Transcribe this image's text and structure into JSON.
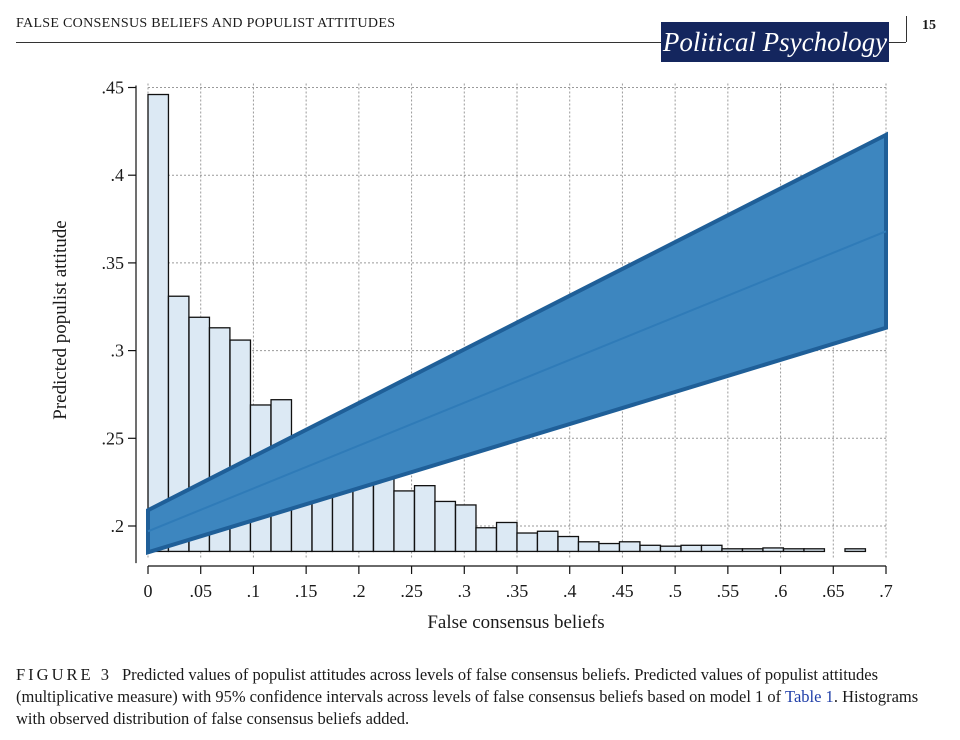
{
  "header": {
    "running_title": "FALSE CONSENSUS BELIEFS AND POPULIST ATTITUDES",
    "journal_name": "Political Psychology",
    "page_number": "15"
  },
  "chart_data": {
    "type": "bar+line",
    "title": "",
    "xlabel": "False consensus beliefs",
    "ylabel": "Predicted populist attitude",
    "xlim": [
      0,
      0.7
    ],
    "ylim": [
      0.18,
      0.45
    ],
    "x_ticks": [
      0,
      0.05,
      0.1,
      0.15,
      0.2,
      0.25,
      0.3,
      0.35,
      0.4,
      0.45,
      0.5,
      0.55,
      0.6,
      0.65,
      0.7
    ],
    "x_tick_labels": [
      "0",
      ".05",
      ".1",
      ".15",
      ".2",
      ".25",
      ".3",
      ".35",
      ".4",
      ".45",
      ".5",
      ".55",
      ".6",
      ".65",
      ".7"
    ],
    "y_ticks": [
      0.2,
      0.25,
      0.3,
      0.35,
      0.4,
      0.45
    ],
    "y_tick_labels": [
      ".2",
      ".25",
      ".3",
      ".35",
      ".4",
      ".45"
    ],
    "grid": true,
    "histogram": {
      "bin_width": 0.0194,
      "bins": [
        {
          "x": 0.0,
          "top": 0.446
        },
        {
          "x": 0.0194,
          "top": 0.331
        },
        {
          "x": 0.0389,
          "top": 0.319
        },
        {
          "x": 0.0583,
          "top": 0.313
        },
        {
          "x": 0.0778,
          "top": 0.306
        },
        {
          "x": 0.0972,
          "top": 0.269
        },
        {
          "x": 0.1167,
          "top": 0.272
        },
        {
          "x": 0.1361,
          "top": 0.251
        },
        {
          "x": 0.1556,
          "top": 0.248
        },
        {
          "x": 0.175,
          "top": 0.243
        },
        {
          "x": 0.1944,
          "top": 0.227
        },
        {
          "x": 0.2139,
          "top": 0.236
        },
        {
          "x": 0.2333,
          "top": 0.22
        },
        {
          "x": 0.2528,
          "top": 0.223
        },
        {
          "x": 0.2722,
          "top": 0.214
        },
        {
          "x": 0.2917,
          "top": 0.212
        },
        {
          "x": 0.3111,
          "top": 0.199
        },
        {
          "x": 0.3306,
          "top": 0.202
        },
        {
          "x": 0.35,
          "top": 0.196
        },
        {
          "x": 0.3694,
          "top": 0.197
        },
        {
          "x": 0.3889,
          "top": 0.194
        },
        {
          "x": 0.4083,
          "top": 0.191
        },
        {
          "x": 0.4278,
          "top": 0.19
        },
        {
          "x": 0.4472,
          "top": 0.191
        },
        {
          "x": 0.4667,
          "top": 0.189
        },
        {
          "x": 0.4861,
          "top": 0.1885
        },
        {
          "x": 0.5056,
          "top": 0.189
        },
        {
          "x": 0.525,
          "top": 0.189
        },
        {
          "x": 0.5444,
          "top": 0.187
        },
        {
          "x": 0.5639,
          "top": 0.187
        },
        {
          "x": 0.5833,
          "top": 0.1875
        },
        {
          "x": 0.6028,
          "top": 0.187
        },
        {
          "x": 0.6222,
          "top": 0.187
        },
        {
          "x": 0.6611,
          "top": 0.187
        }
      ]
    },
    "series": [
      {
        "name": "Predicted value",
        "x": [
          0,
          0.7
        ],
        "y": [
          0.197,
          0.368
        ]
      },
      {
        "name": "95% CI lower",
        "x": [
          0,
          0.7
        ],
        "y": [
          0.185,
          0.313
        ]
      },
      {
        "name": "95% CI upper",
        "x": [
          0,
          0.7
        ],
        "y": [
          0.209,
          0.423
        ]
      }
    ],
    "colors": {
      "band_fill": "#3d86bf",
      "band_edge": "#1f5f98",
      "line": "#2f7bb8",
      "bar_fill": "#dce9f4",
      "bar_edge": "#111111"
    }
  },
  "caption": {
    "label": "FIGURE 3",
    "text_before_link": "Predicted values of populist attitudes across levels of false consensus beliefs. Predicted values of populist attitudes (multiplicative measure) with 95% confidence intervals across levels of false consensus beliefs based on model 1 of ",
    "link_text": "Table 1",
    "text_after_link": ". Histograms with observed distribution of false consensus beliefs added."
  }
}
